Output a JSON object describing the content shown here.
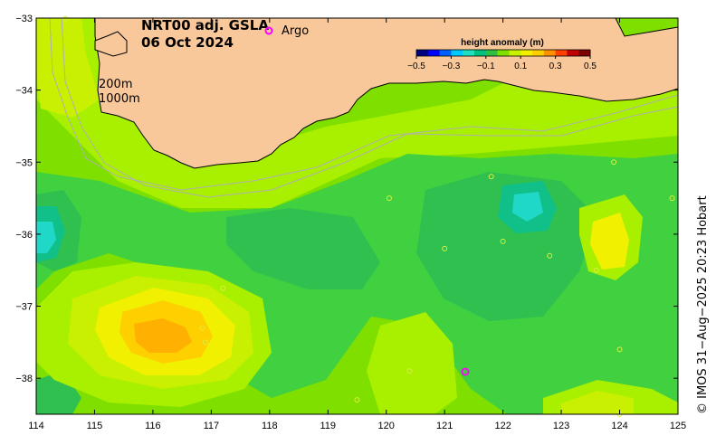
{
  "title": {
    "line1": "NRT00 adj. GSLA",
    "line2": "06 Oct 2024"
  },
  "legend": {
    "argo_label": "Argo",
    "argo_color": "#ff00ff"
  },
  "colorbar": {
    "title": "height anomaly (m)",
    "tick_labels": [
      "−0.5",
      "−0.3",
      "−0.1",
      "0.1",
      "0.3",
      "0.5"
    ],
    "colors": [
      "#00007f",
      "#0000ff",
      "#0060ff",
      "#00c8ff",
      "#20e0c0",
      "#00c080",
      "#30c040",
      "#7fe000",
      "#c8f000",
      "#f0f000",
      "#ffd000",
      "#ff9000",
      "#ff4000",
      "#c00000",
      "#7f0000"
    ]
  },
  "contour_labels": [
    "200m",
    "1000m"
  ],
  "credit": "© IMOS 31−Aug−2025 20:23 Hobart",
  "colors": {
    "land": "#f8c89a",
    "background_green": "#7fe000",
    "light_green": "#a8f000",
    "yellow_green": "#c8f000",
    "green": "#40d040",
    "mid_green": "#30c050",
    "teal": "#10c088",
    "cyan": "#20d8c8",
    "yellow": "#f0f000",
    "gold": "#ffd000",
    "orange": "#ffb000",
    "isobath": "#b0b0b0"
  },
  "chart_data": {
    "type": "map",
    "x_axis": {
      "ticks": [
        "114",
        "115",
        "116",
        "117",
        "118",
        "119",
        "120",
        "121",
        "122",
        "123",
        "124",
        "125"
      ],
      "range": [
        114,
        125
      ]
    },
    "y_axis": {
      "ticks": [
        "−33",
        "−34",
        "−35",
        "−36",
        "−37",
        "−38"
      ],
      "range": [
        -38.5,
        -33
      ]
    },
    "argo_floats": [
      {
        "lon": 121.35,
        "lat": -37.92
      },
      {
        "lon": 117.85,
        "lat": -33.16
      }
    ],
    "anomaly_features": [
      {
        "label": "positive eddy",
        "lon": 116.3,
        "lat": -37.4,
        "value": 0.25
      },
      {
        "label": "negative eddy",
        "lon": 114.2,
        "lat": -36.1,
        "value": -0.1
      },
      {
        "label": "negative eddy",
        "lon": 122.4,
        "lat": -35.6,
        "value": -0.1
      },
      {
        "label": "positive eddy",
        "lon": 123.8,
        "lat": -36.2,
        "value": 0.15
      }
    ]
  }
}
